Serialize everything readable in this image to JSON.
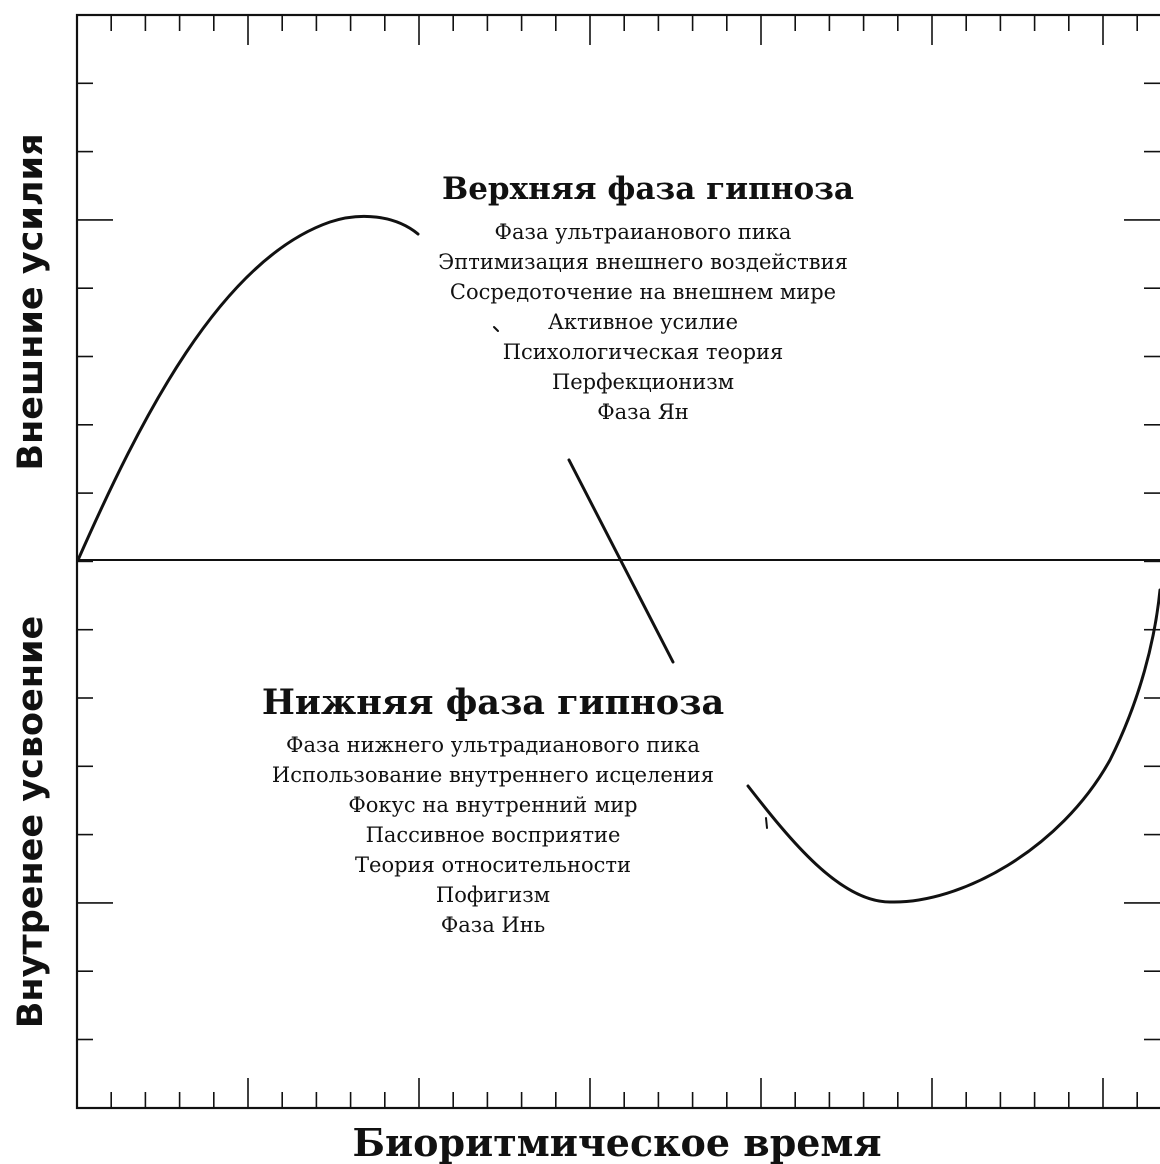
{
  "y_axis": {
    "upper_label": "Внешние усилия",
    "lower_label": "Внутренее усвоение"
  },
  "x_axis": {
    "label": "Биоритмическое время"
  },
  "upper_phase": {
    "title": "Верхняя фаза гипноза",
    "items": [
      "Фаза ультраианового пика",
      "Эптимизация внешнего воздействия",
      "Сосредоточение на внешнем мире",
      "Активное усилие",
      "Психологическая теория",
      "Перфекционизм",
      "Фаза Ян"
    ]
  },
  "lower_phase": {
    "title": "Нижняя фаза гипноза",
    "items": [
      "Фаза нижнего ультрадианового пика",
      "Использование внутреннего исцеления",
      "Фокус на внутренний мир",
      "Пассивное восприятие",
      "Теория относительности",
      "Пофигизм",
      "Фаза Инь"
    ]
  }
}
